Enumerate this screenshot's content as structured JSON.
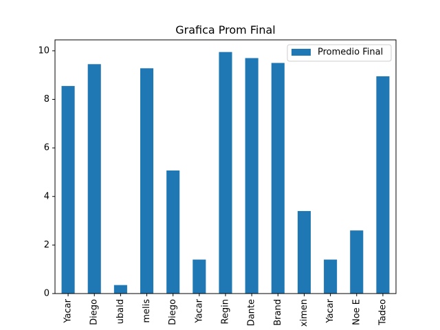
{
  "chart_data": {
    "type": "bar",
    "title": "Grafica Prom Final",
    "xlabel": "",
    "ylabel": "",
    "categories": [
      "Yacar",
      "Diego",
      "ubald",
      "melis",
      "Diego",
      "Yacar",
      "Regin",
      "Dante",
      "Brand",
      "ximen",
      "Yacar",
      "Noe E",
      "Tadeo"
    ],
    "series": [
      {
        "name": "Promedio Final",
        "values": [
          8.55,
          9.45,
          0.35,
          9.28,
          5.07,
          1.4,
          9.95,
          9.7,
          9.5,
          3.4,
          1.4,
          2.6,
          8.95
        ],
        "color": "#1f77b4"
      }
    ],
    "ylim": [
      0,
      10.45
    ],
    "yticks": [
      0,
      2,
      4,
      6,
      8,
      10
    ],
    "grid": false,
    "legend_position": "top-right"
  }
}
